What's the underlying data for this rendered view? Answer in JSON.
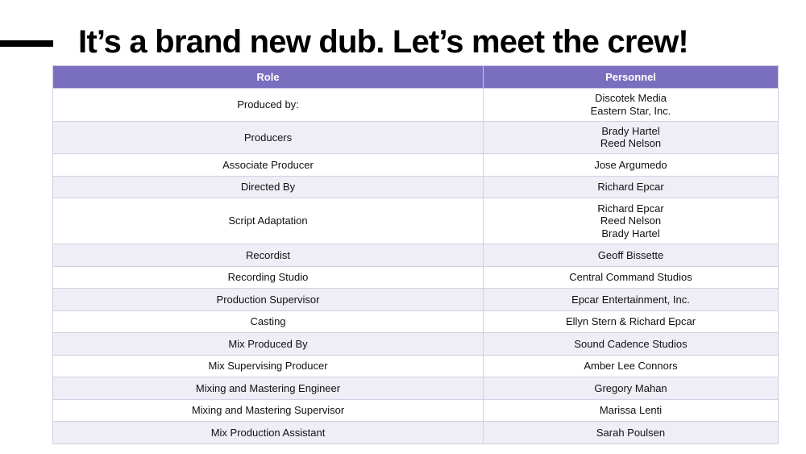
{
  "slide": {
    "title": "It’s a brand new dub. Let’s meet the crew!"
  },
  "table": {
    "headers": [
      "Role",
      "Personnel"
    ],
    "rows": [
      {
        "role": "Produced by:",
        "personnel": [
          "Discotek Media",
          "Eastern Star, Inc."
        ]
      },
      {
        "role": "Producers",
        "personnel": [
          "Brady Hartel",
          "Reed Nelson"
        ]
      },
      {
        "role": "Associate Producer",
        "personnel": [
          "Jose Argumedo"
        ]
      },
      {
        "role": "Directed By",
        "personnel": [
          "Richard Epcar"
        ]
      },
      {
        "role": "Script Adaptation",
        "personnel": [
          "Richard Epcar",
          "Reed Nelson",
          "Brady Hartel"
        ]
      },
      {
        "role": "Recordist",
        "personnel": [
          "Geoff Bissette"
        ]
      },
      {
        "role": "Recording Studio",
        "personnel": [
          "Central Command Studios"
        ]
      },
      {
        "role": "Production Supervisor",
        "personnel": [
          "Epcar Entertainment, Inc."
        ]
      },
      {
        "role": "Casting",
        "personnel": [
          "Ellyn Stern & Richard Epcar"
        ]
      },
      {
        "role": "Mix Produced By",
        "personnel": [
          "Sound Cadence Studios"
        ]
      },
      {
        "role": "Mix Supervising Producer",
        "personnel": [
          "Amber Lee Connors"
        ]
      },
      {
        "role": "Mixing and Mastering Engineer",
        "personnel": [
          "Gregory Mahan"
        ]
      },
      {
        "role": "Mixing and Mastering Supervisor",
        "personnel": [
          "Marissa Lenti"
        ]
      },
      {
        "role": "Mix Production Assistant",
        "personnel": [
          "Sarah Poulsen"
        ]
      }
    ]
  },
  "colors": {
    "header_bg": "#7a6fbf",
    "row_stripe": "#efedf5",
    "accent_bar": "#000000"
  }
}
